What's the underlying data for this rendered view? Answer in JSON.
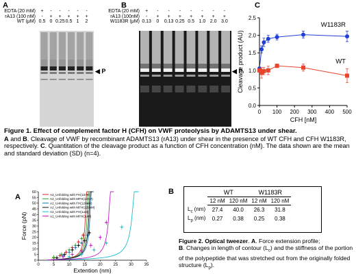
{
  "figure1": {
    "panel_a": {
      "label": "A",
      "row_labels": [
        "EDTA (20 mM)",
        "rA13 (100 nM)",
        "WT (μM)"
      ],
      "edta": [
        "+",
        "-",
        "-",
        "-",
        "-",
        "-"
      ],
      "ra13": [
        "-",
        "+",
        "+",
        "+",
        "+",
        "+"
      ],
      "conc": [
        "0.5",
        "0",
        "0.25",
        "0.5",
        "1",
        "2"
      ],
      "marker": "P"
    },
    "panel_b": {
      "label": "B",
      "row_labels": [
        "EDTA (20 mM)",
        "rA13 (100nM)",
        "W1183R (μM)"
      ],
      "edta": [
        "+",
        "-",
        "-",
        "-",
        "-",
        "-",
        "-",
        "-"
      ],
      "ra13": [
        "-",
        "+",
        "+",
        "+",
        "+",
        "+",
        "+",
        "+"
      ],
      "conc": [
        "0.13",
        "0",
        "0.13",
        "0.25",
        "0.5",
        "1.0",
        "2.0",
        "3.0"
      ],
      "marker": "P"
    },
    "panel_c": {
      "label": "C",
      "chart_data": {
        "type": "line",
        "xlabel": "CFH [nM]",
        "ylabel": "Cleavage product (AU)",
        "xlim": [
          0,
          500
        ],
        "ylim": [
          0.0,
          2.5
        ],
        "xticks": [
          "0",
          "100",
          "200",
          "300",
          "400",
          "500"
        ],
        "yticks": [
          "0.0",
          "0.5",
          "1.0",
          "1.5",
          "2.0",
          "2.5"
        ],
        "series": [
          {
            "name": "W1183R",
            "color": "#1f3fd6",
            "marker": "circle",
            "x": [
              0,
              12,
              25,
              50,
              100,
              250,
              500
            ],
            "y": [
              1.05,
              1.6,
              1.8,
              1.9,
              1.95,
              2.02,
              1.97
            ],
            "err": [
              0.05,
              0.1,
              0.12,
              0.1,
              0.08,
              0.1,
              0.15
            ]
          },
          {
            "name": "WT",
            "color": "#e8452c",
            "marker": "square",
            "x": [
              0,
              12,
              25,
              50,
              100,
              250,
              500
            ],
            "y": [
              1.0,
              0.93,
              0.98,
              1.0,
              1.13,
              1.08,
              0.85
            ],
            "err": [
              0.05,
              0.15,
              0.1,
              0.12,
              0.05,
              0.1,
              0.2
            ]
          }
        ]
      }
    },
    "caption": {
      "title": "Figure 1.  Effect of complement factor H (CFH) on VWF proteolysis by ADAMTS13 under shear.",
      "ab_label": "A",
      "ab_and": " and ",
      "b_label": "B",
      "body1": ". Cleavage of VWF by recombinant ADAMTS13 (rA13) under shear in the presence of WT CFH and CFH W1183R, respectively. ",
      "c_label": "C",
      "body2": ". Quantitation of the cleavage product as a function of CFH concentration (nM). The data shown are the mean and standard deviation (SD) (n=4)."
    }
  },
  "figure2": {
    "panel_a": {
      "label": "A",
      "chart_data": {
        "type": "scatter",
        "xlabel": "Extention (nm)",
        "ylabel": "Force (pN)",
        "xlim": [
          0,
          35
        ],
        "ylim": [
          0,
          60
        ],
        "xticks": [
          "0",
          "5",
          "10",
          "15",
          "20",
          "25",
          "30",
          "35"
        ],
        "yticks": [
          "0",
          "5",
          "10",
          "15",
          "20",
          "25",
          "30",
          "35",
          "40",
          "45",
          "50",
          "55",
          "60"
        ],
        "series": [
          {
            "name": "A2_Unfolding with FH(12nM)",
            "color": "#d62728",
            "Lc": 16.6,
            "points": [
              [
                5,
                2
              ],
              [
                7,
                4
              ],
              [
                9,
                7
              ],
              [
                11,
                11
              ],
              [
                13,
                16
              ],
              [
                14.5,
                22
              ]
            ]
          },
          {
            "name": "A2_Unfolding with MFH(12nM)",
            "color": "#2ca02c",
            "Lc": 17.2,
            "points": [
              [
                5,
                2.5
              ],
              [
                7.5,
                5
              ],
              [
                10,
                9
              ],
              [
                12,
                13
              ],
              [
                14,
                19
              ]
            ]
          },
          {
            "name": "A2_Unfolding with FH(120nM)",
            "color": "#1f77b4",
            "Lc": 18.2,
            "points": [
              [
                6,
                2
              ],
              [
                8,
                4
              ],
              [
                10,
                7
              ],
              [
                12,
                11
              ],
              [
                14,
                15
              ],
              [
                16,
                22
              ]
            ]
          },
          {
            "name": "A2_Unfolding with MFH(120nM)",
            "color": "#111111",
            "Lc": 17.8,
            "points": [
              [
                6,
                2
              ],
              [
                8.5,
                5
              ],
              [
                11,
                9
              ],
              [
                13,
                13
              ],
              [
                15,
                17
              ],
              [
                16.5,
                24
              ]
            ]
          },
          {
            "name": "A2_Unfolding with FH(1uM)",
            "color": "#17becf",
            "Lc": 33.0,
            "points": [
              [
                10,
                3
              ],
              [
                14,
                5
              ],
              [
                18,
                9
              ],
              [
                22,
                15
              ],
              [
                27,
                29
              ]
            ]
          },
          {
            "name": "A2_Unfolding with MFH(1uM)",
            "color": "#c21fc8",
            "Lc": 24.8,
            "points": [
              [
                8,
                3
              ],
              [
                11,
                5
              ],
              [
                14,
                8
              ],
              [
                17,
                13
              ],
              [
                20,
                20
              ],
              [
                22,
                33
              ]
            ]
          }
        ]
      }
    },
    "panel_b": {
      "label": "B",
      "header": [
        "WT",
        "W1183R"
      ],
      "subheader": [
        "12 nM",
        "120 nM",
        "12 nM",
        "120 nM"
      ],
      "rows": [
        {
          "label": "Lc (nm)",
          "lab_main": "L",
          "lab_sub": "c",
          "lab_unit": " (nm)",
          "values": [
            "27.4",
            "40.0",
            "26.3",
            "31.8"
          ]
        },
        {
          "label": "Lp (nm)",
          "lab_main": "L",
          "lab_sub": "p",
          "lab_unit": " (nm)",
          "values": [
            "0.27",
            "0.38",
            "0.25",
            "0.38"
          ]
        }
      ]
    },
    "caption": {
      "title": "Figure 2. Optical tweezer",
      "t1": ". ",
      "a_label": "A",
      "t2": ". Force extension profile;",
      "b_label": "B",
      "t3": ". Changes in length of contour (L",
      "sub_c": "c",
      "t4": ") and the stiffness of the portion of the polypeptide that was stretched out from the originally folded structure (L",
      "sub_p": "p",
      "t5": ")."
    }
  }
}
